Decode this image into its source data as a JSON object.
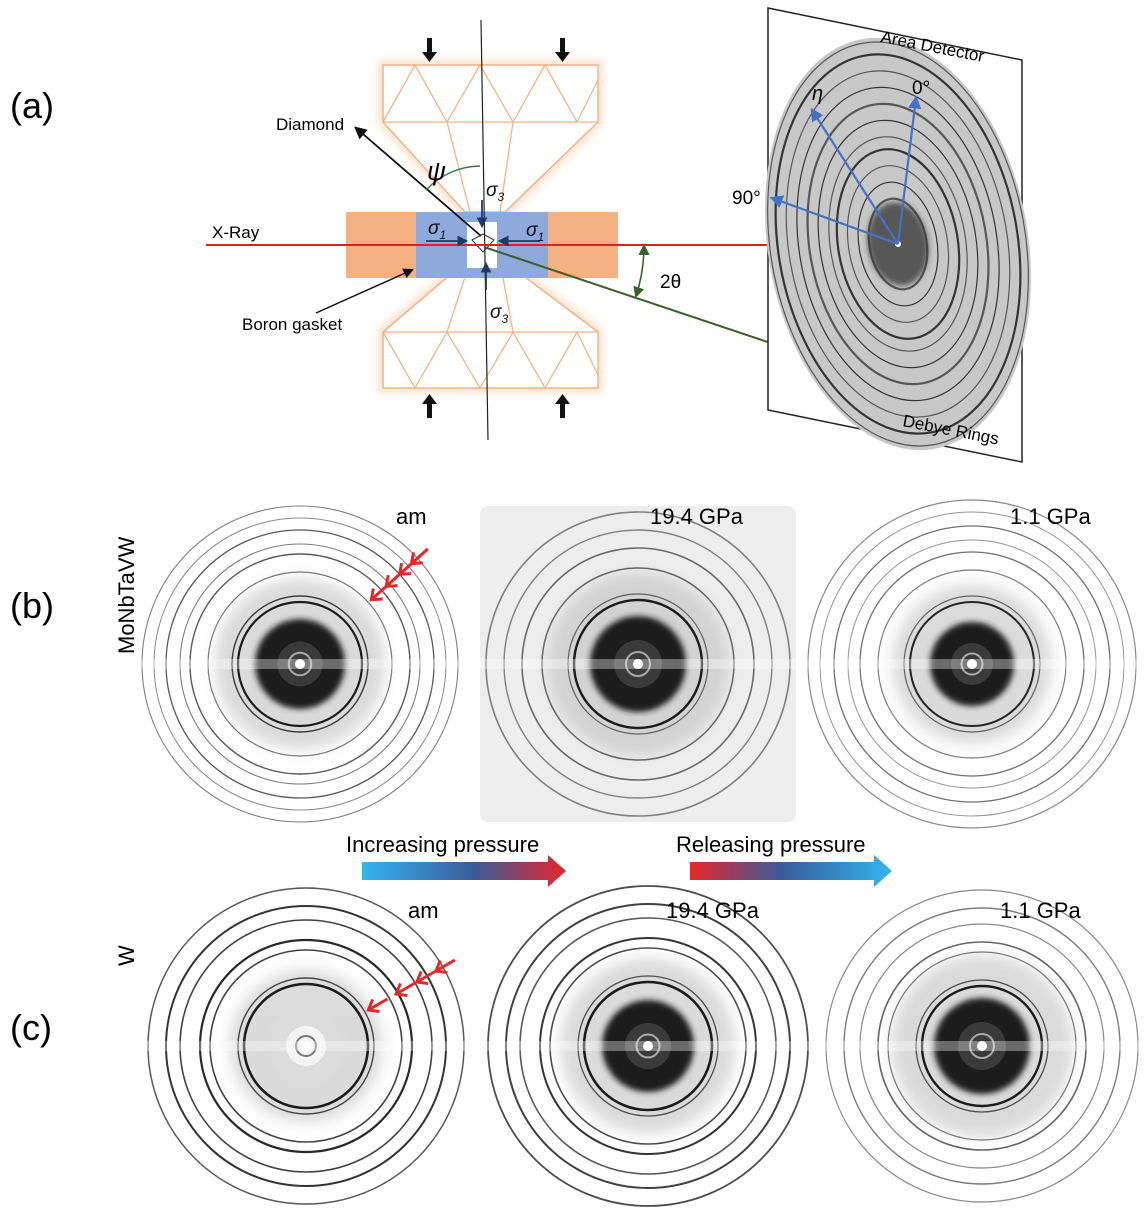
{
  "panel_a": {
    "letter": "(a)",
    "diamond_label": "Diamond",
    "xray_label": "X-Ray",
    "gasket_label": "Boron gasket",
    "psi": "ψ",
    "sigma1": "σ",
    "sigma3": "σ",
    "sigma1_sub": "1",
    "sigma3_sub": "3",
    "two_theta": "2θ",
    "eta": "η",
    "zero_deg": "0°",
    "ninety_deg": "90°",
    "detector_label": "Area Detector",
    "rings_label": "Debye Rings"
  },
  "panel_b": {
    "letter": "(b)",
    "sample": "MoNbTaVW",
    "images": [
      {
        "label": "am"
      },
      {
        "label": "19.4 GPa"
      },
      {
        "label": "1.1 GPa"
      }
    ]
  },
  "arrows": {
    "increasing": "Increasing pressure",
    "releasing": "Releasing pressure"
  },
  "panel_c": {
    "letter": "(c)",
    "sample": "W",
    "images": [
      {
        "label": "am"
      },
      {
        "label": "19.4 GPa"
      },
      {
        "label": "1.1 GPa"
      }
    ]
  },
  "colors": {
    "xray": "#e02020",
    "gasket_orange": "#f4b183",
    "gasket_blue": "#8ea9db",
    "eta_arrow": "#4472c4",
    "diffracted": "#3a5f2a",
    "marker_arrow": "#e8262a",
    "increasing_start": "#33b5f0",
    "increasing_end": "#e8262a",
    "releasing_start": "#e8262a",
    "releasing_end": "#33b5f0"
  }
}
